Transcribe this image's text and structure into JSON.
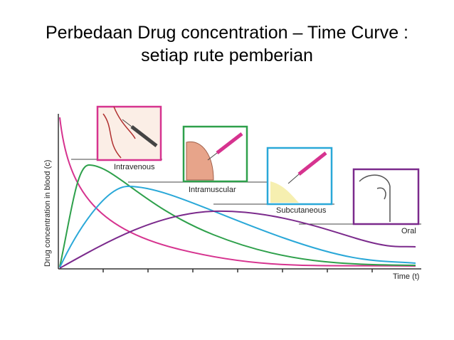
{
  "header": {
    "title_line1": "Perbedaan Drug concentration – Time Curve :",
    "title_line2": "setiap rute pemberian"
  },
  "diagram": {
    "y_axis_label": "Drug concentration in blood (c)",
    "x_axis_label": "Time (t)",
    "routes": [
      {
        "label": "Intravenous"
      },
      {
        "label": "Intramuscular"
      },
      {
        "label": "Subcutaneous"
      },
      {
        "label": "Oral"
      }
    ]
  }
}
